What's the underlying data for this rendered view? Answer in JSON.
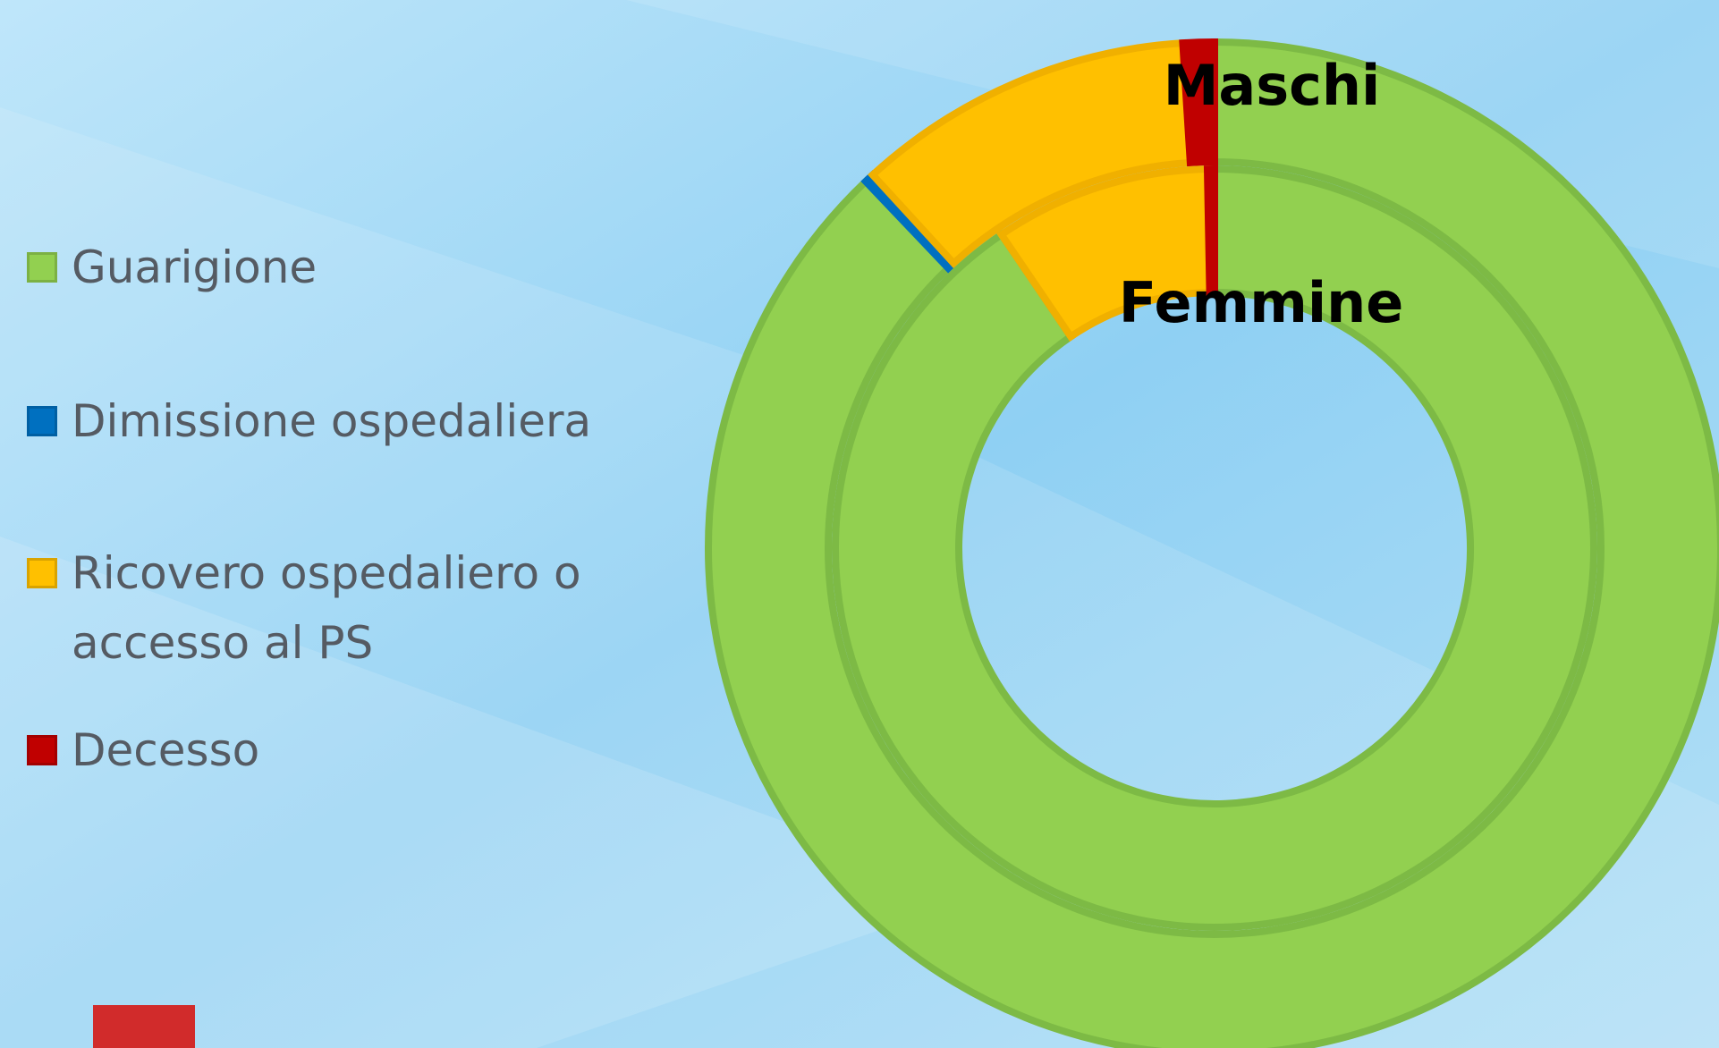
{
  "chart_data": {
    "type": "donut",
    "categories": [
      "Guarigione",
      "Dimissione ospedaliera",
      "Ricovero ospedaliero o accesso al PS",
      "Decesso"
    ],
    "colors": [
      "#92d050",
      "#0070c0",
      "#ffc000",
      "#c00000"
    ],
    "series": [
      {
        "name": "Maschi",
        "values": [
          87.9,
          0.3,
          10.8,
          1.0
        ]
      },
      {
        "name": "Femmine",
        "values": [
          90.5,
          0,
          9.2,
          0.3
        ]
      }
    ]
  }
}
